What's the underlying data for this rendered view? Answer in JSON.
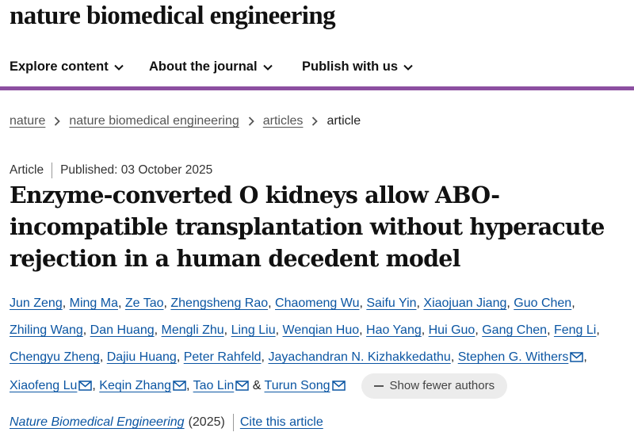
{
  "site": {
    "logo": "nature biomedical engineering"
  },
  "nav": {
    "items": [
      {
        "label": "Explore content",
        "icon": "chevron-down-icon"
      },
      {
        "label": "About the journal",
        "icon": "chevron-down-icon"
      },
      {
        "label": "Publish with us",
        "icon": "chevron-down-icon"
      }
    ]
  },
  "breadcrumb": {
    "items": [
      "nature",
      "nature biomedical engineering",
      "articles"
    ],
    "current": "article"
  },
  "article": {
    "type": "Article",
    "published": "Published: 03 October 2025",
    "title": "Enzyme-converted O kidneys allow ABO-incompatible transplantation without hyperacute rejection in a human decedent model",
    "authors": [
      "Jun Zeng",
      "Ming Ma",
      "Ze Tao",
      "Zhengsheng Rao",
      "Chaomeng Wu",
      "Saifu Yin",
      "Xiaojuan Jiang",
      "Guo Chen",
      "Zhiling Wang",
      "Dan Huang",
      "Mengli Zhu",
      "Ling Liu",
      "Wenqian Huo",
      "Hao Yang",
      "Hui Guo",
      "Gang Chen",
      "Feng Li",
      "Chengyu Zheng",
      "Dajiu Huang",
      "Peter Rahfeld",
      "Jayachandran N. Kizhakkedathu",
      "Stephen G. Withers",
      "Xiaofeng Lu",
      "Keqin Zhang",
      "Tao Lin",
      "Turun Song"
    ],
    "last_connector": "&",
    "show_fewer_label": "Show fewer authors",
    "journal": "Nature Biomedical Engineering",
    "year": "(2025)",
    "cite_label": "Cite this article"
  },
  "colors": {
    "accent": "#8c4fa1",
    "link": "#0c56a3",
    "text": "#222222"
  }
}
